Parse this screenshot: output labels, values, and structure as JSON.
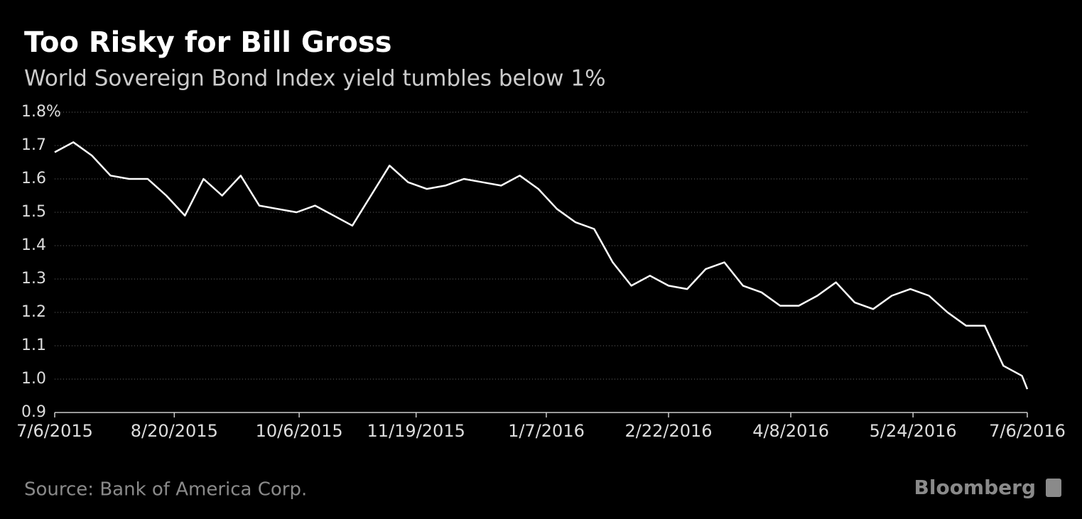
{
  "chart_data": {
    "type": "line",
    "title": "Too Risky for Bill Gross",
    "subtitle": "World Sovereign Bond Index yield tumbles below 1%",
    "source": "Source: Bank of America Corp.",
    "logo": "Bloomberg",
    "x": [
      "7/6/2015",
      "7/13/2015",
      "7/20/2015",
      "7/27/2015",
      "8/3/2015",
      "8/10/2015",
      "8/17/2015",
      "8/24/2015",
      "8/31/2015",
      "9/7/2015",
      "9/14/2015",
      "9/21/2015",
      "9/28/2015",
      "10/5/2015",
      "10/12/2015",
      "10/19/2015",
      "10/26/2015",
      "11/2/2015",
      "11/9/2015",
      "11/16/2015",
      "11/23/2015",
      "11/30/2015",
      "12/7/2015",
      "12/14/2015",
      "12/21/2015",
      "12/28/2015",
      "1/4/2016",
      "1/11/2016",
      "1/18/2016",
      "1/25/2016",
      "2/1/2016",
      "2/8/2016",
      "2/15/2016",
      "2/22/2016",
      "2/29/2016",
      "3/7/2016",
      "3/14/2016",
      "3/21/2016",
      "3/28/2016",
      "4/4/2016",
      "4/11/2016",
      "4/18/2016",
      "4/25/2016",
      "5/2/2016",
      "5/9/2016",
      "5/16/2016",
      "5/23/2016",
      "5/30/2016",
      "6/6/2016",
      "6/13/2016",
      "6/20/2016",
      "6/27/2016",
      "7/4/2016",
      "7/6/2016"
    ],
    "series": [
      {
        "name": "World Sovereign Bond Index yield",
        "color": "#ffffff",
        "values": [
          1.68,
          1.71,
          1.67,
          1.61,
          1.6,
          1.6,
          1.55,
          1.49,
          1.6,
          1.55,
          1.61,
          1.52,
          1.51,
          1.5,
          1.52,
          1.49,
          1.46,
          1.55,
          1.64,
          1.59,
          1.57,
          1.58,
          1.6,
          1.59,
          1.58,
          1.61,
          1.57,
          1.51,
          1.47,
          1.45,
          1.35,
          1.28,
          1.31,
          1.28,
          1.27,
          1.33,
          1.35,
          1.28,
          1.26,
          1.22,
          1.22,
          1.25,
          1.29,
          1.23,
          1.21,
          1.25,
          1.27,
          1.25,
          1.2,
          1.16,
          1.16,
          1.04,
          1.01,
          0.97
        ]
      }
    ],
    "xlim": [
      "7/6/2015",
      "7/6/2016"
    ],
    "xticks": [
      "7/6/2015",
      "8/20/2015",
      "10/6/2015",
      "11/19/2015",
      "1/7/2016",
      "2/22/2016",
      "4/8/2016",
      "5/24/2016",
      "7/6/2016"
    ],
    "ylim": [
      0.9,
      1.8
    ],
    "yticks": [
      0.9,
      {
        "value": 1,
        "label": "1.0"
      },
      1.1,
      1.2,
      1.3,
      1.4,
      1.5,
      1.6,
      1.7,
      {
        "value": 1.8,
        "label": "1.8%"
      }
    ],
    "grid": true
  }
}
